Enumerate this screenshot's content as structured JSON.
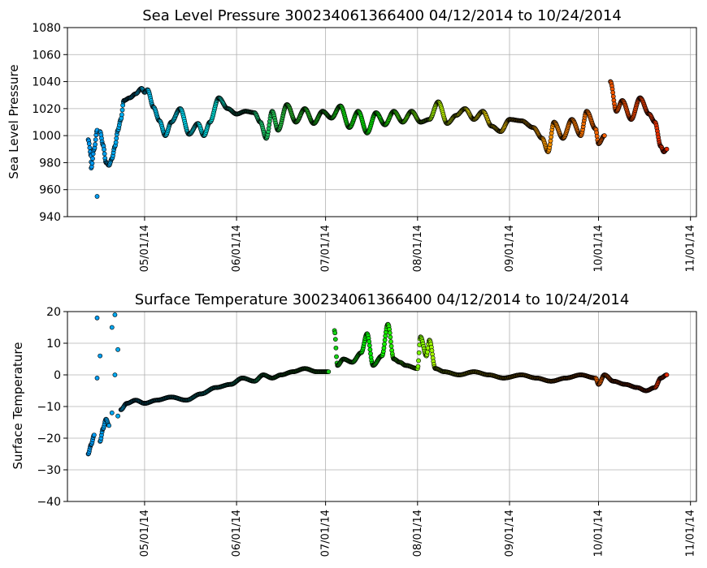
{
  "chart_data": [
    {
      "type": "scatter",
      "title": "Sea Level Pressure 300234061366400  04/12/2014 to 10/24/2014",
      "xlabel": "",
      "ylabel": "Sea Level Pressure",
      "x_ticks": [
        "05/01/14",
        "06/01/14",
        "07/01/14",
        "08/01/14",
        "09/01/14",
        "10/01/14",
        "11/01/14"
      ],
      "x_range": [
        "2014-04-05",
        "2014-11-03"
      ],
      "y_ticks": [
        940,
        960,
        980,
        1000,
        1020,
        1040,
        1060,
        1080
      ],
      "ylim": [
        940,
        1080
      ],
      "grid": true,
      "color_scale": "time (blue → cyan → green → yellow → orange → red)",
      "series": [
        {
          "points": [
            [
              "2014-04-12",
              997
            ],
            [
              "2014-04-13",
              985
            ],
            [
              "2014-04-13",
              976
            ],
            [
              "2014-04-14",
              990
            ],
            [
              "2014-04-15",
              1004
            ],
            [
              "2014-04-15",
              955
            ],
            [
              "2014-04-16",
              1003
            ],
            [
              "2014-04-17",
              993
            ],
            [
              "2014-04-18",
              980
            ],
            [
              "2014-04-19",
              978
            ],
            [
              "2014-04-20",
              983
            ],
            [
              "2014-04-21",
              992
            ],
            [
              "2014-04-22",
              1004
            ],
            [
              "2014-04-23",
              1012
            ],
            [
              "2014-04-24",
              1026
            ],
            [
              "2014-04-26",
              1028
            ],
            [
              "2014-04-28",
              1031
            ],
            [
              "2014-04-30",
              1035
            ],
            [
              "2014-05-01",
              1032
            ],
            [
              "2014-05-02",
              1034
            ],
            [
              "2014-05-04",
              1021
            ],
            [
              "2014-05-06",
              1011
            ],
            [
              "2014-05-08",
              1000
            ],
            [
              "2014-05-10",
              1010
            ],
            [
              "2014-05-13",
              1020
            ],
            [
              "2014-05-16",
              1001
            ],
            [
              "2014-05-19",
              1009
            ],
            [
              "2014-05-21",
              1000
            ],
            [
              "2014-05-23",
              1010
            ],
            [
              "2014-05-26",
              1028
            ],
            [
              "2014-05-29",
              1020
            ],
            [
              "2014-06-01",
              1016
            ],
            [
              "2014-06-04",
              1018
            ],
            [
              "2014-06-07",
              1017
            ],
            [
              "2014-06-09",
              1010
            ],
            [
              "2014-06-11",
              998
            ],
            [
              "2014-06-13",
              1018
            ],
            [
              "2014-06-15",
              1004
            ],
            [
              "2014-06-18",
              1023
            ],
            [
              "2014-06-21",
              1010
            ],
            [
              "2014-06-24",
              1020
            ],
            [
              "2014-06-27",
              1009
            ],
            [
              "2014-06-30",
              1018
            ],
            [
              "2014-07-03",
              1013
            ],
            [
              "2014-07-06",
              1022
            ],
            [
              "2014-07-09",
              1006
            ],
            [
              "2014-07-12",
              1018
            ],
            [
              "2014-07-15",
              1002
            ],
            [
              "2014-07-18",
              1017
            ],
            [
              "2014-07-21",
              1008
            ],
            [
              "2014-07-24",
              1018
            ],
            [
              "2014-07-27",
              1010
            ],
            [
              "2014-07-30",
              1018
            ],
            [
              "2014-08-02",
              1010
            ],
            [
              "2014-08-05",
              1012
            ],
            [
              "2014-08-08",
              1025
            ],
            [
              "2014-08-11",
              1009
            ],
            [
              "2014-08-14",
              1015
            ],
            [
              "2014-08-17",
              1020
            ],
            [
              "2014-08-20",
              1012
            ],
            [
              "2014-08-23",
              1018
            ],
            [
              "2014-08-26",
              1007
            ],
            [
              "2014-08-29",
              1003
            ],
            [
              "2014-09-01",
              1012
            ],
            [
              "2014-09-05",
              1011
            ],
            [
              "2014-09-09",
              1006
            ],
            [
              "2014-09-12",
              998
            ],
            [
              "2014-09-14",
              988
            ],
            [
              "2014-09-16",
              1010
            ],
            [
              "2014-09-19",
              998
            ],
            [
              "2014-09-22",
              1012
            ],
            [
              "2014-09-25",
              1000
            ],
            [
              "2014-09-27",
              1018
            ],
            [
              "2014-09-30",
              1005
            ],
            [
              "2014-10-01",
              994
            ],
            [
              "2014-10-03",
              1000
            ],
            [
              "2014-10-05",
              1040
            ],
            [
              "2014-10-07",
              1018
            ],
            [
              "2014-10-09",
              1026
            ],
            [
              "2014-10-12",
              1012
            ],
            [
              "2014-10-15",
              1028
            ],
            [
              "2014-10-18",
              1016
            ],
            [
              "2014-10-20",
              1010
            ],
            [
              "2014-10-22",
              992
            ],
            [
              "2014-10-23",
              988
            ],
            [
              "2014-10-24",
              990
            ]
          ]
        }
      ]
    },
    {
      "type": "scatter",
      "title": "Surface Temperature 300234061366400  04/12/2014 to 10/24/2014",
      "xlabel": "",
      "ylabel": "Surface Temperature",
      "x_ticks": [
        "05/01/14",
        "06/01/14",
        "07/01/14",
        "08/01/14",
        "09/01/14",
        "10/01/14",
        "11/01/14"
      ],
      "x_range": [
        "2014-04-05",
        "2014-11-03"
      ],
      "y_ticks": [
        -40,
        -30,
        -20,
        -10,
        0,
        10,
        20
      ],
      "ylim": [
        -40,
        20
      ],
      "grid": true,
      "color_scale": "time (blue → cyan → green → yellow → orange → red)",
      "series": [
        {
          "points": [
            [
              "2014-04-12",
              -25
            ],
            [
              "2014-04-13",
              -22
            ],
            [
              "2014-04-14",
              -19
            ],
            [
              "2014-04-15",
              -1
            ],
            [
              "2014-04-15",
              18
            ],
            [
              "2014-04-16",
              6
            ],
            [
              "2014-04-16",
              -21
            ],
            [
              "2014-04-17",
              -17
            ],
            [
              "2014-04-18",
              -14
            ],
            [
              "2014-04-19",
              -16
            ],
            [
              "2014-04-20",
              15
            ],
            [
              "2014-04-20",
              -12
            ],
            [
              "2014-04-21",
              19
            ],
            [
              "2014-04-21",
              0
            ],
            [
              "2014-04-22",
              -13
            ],
            [
              "2014-04-22",
              8
            ],
            [
              "2014-04-23",
              -11
            ],
            [
              "2014-04-25",
              -9
            ],
            [
              "2014-04-28",
              -8
            ],
            [
              "2014-05-01",
              -9
            ],
            [
              "2014-05-05",
              -8
            ],
            [
              "2014-05-10",
              -7
            ],
            [
              "2014-05-15",
              -8
            ],
            [
              "2014-05-20",
              -6
            ],
            [
              "2014-05-25",
              -4
            ],
            [
              "2014-05-30",
              -3
            ],
            [
              "2014-06-03",
              -1
            ],
            [
              "2014-06-07",
              -2
            ],
            [
              "2014-06-10",
              0
            ],
            [
              "2014-06-13",
              -1
            ],
            [
              "2014-06-16",
              0
            ],
            [
              "2014-06-20",
              1
            ],
            [
              "2014-06-24",
              2
            ],
            [
              "2014-06-28",
              1
            ],
            [
              "2014-07-02",
              1
            ],
            [
              "2014-07-04",
              14
            ],
            [
              "2014-07-05",
              3
            ],
            [
              "2014-07-07",
              5
            ],
            [
              "2014-07-10",
              4
            ],
            [
              "2014-07-13",
              7
            ],
            [
              "2014-07-15",
              13
            ],
            [
              "2014-07-17",
              3
            ],
            [
              "2014-07-20",
              6
            ],
            [
              "2014-07-22",
              16
            ],
            [
              "2014-07-24",
              5
            ],
            [
              "2014-07-26",
              4
            ],
            [
              "2014-07-28",
              3
            ],
            [
              "2014-08-01",
              2
            ],
            [
              "2014-08-02",
              12
            ],
            [
              "2014-08-04",
              6
            ],
            [
              "2014-08-05",
              11
            ],
            [
              "2014-08-07",
              2
            ],
            [
              "2014-08-10",
              1
            ],
            [
              "2014-08-15",
              0
            ],
            [
              "2014-08-20",
              1
            ],
            [
              "2014-08-25",
              0
            ],
            [
              "2014-08-30",
              -1
            ],
            [
              "2014-09-05",
              0
            ],
            [
              "2014-09-10",
              -1
            ],
            [
              "2014-09-15",
              -2
            ],
            [
              "2014-09-20",
              -1
            ],
            [
              "2014-09-25",
              0
            ],
            [
              "2014-09-30",
              -1
            ],
            [
              "2014-10-01",
              -3
            ],
            [
              "2014-10-03",
              0
            ],
            [
              "2014-10-06",
              -2
            ],
            [
              "2014-10-10",
              -3
            ],
            [
              "2014-10-14",
              -4
            ],
            [
              "2014-10-17",
              -5
            ],
            [
              "2014-10-20",
              -4
            ],
            [
              "2014-10-22",
              -1
            ],
            [
              "2014-10-24",
              0
            ]
          ]
        }
      ]
    }
  ]
}
